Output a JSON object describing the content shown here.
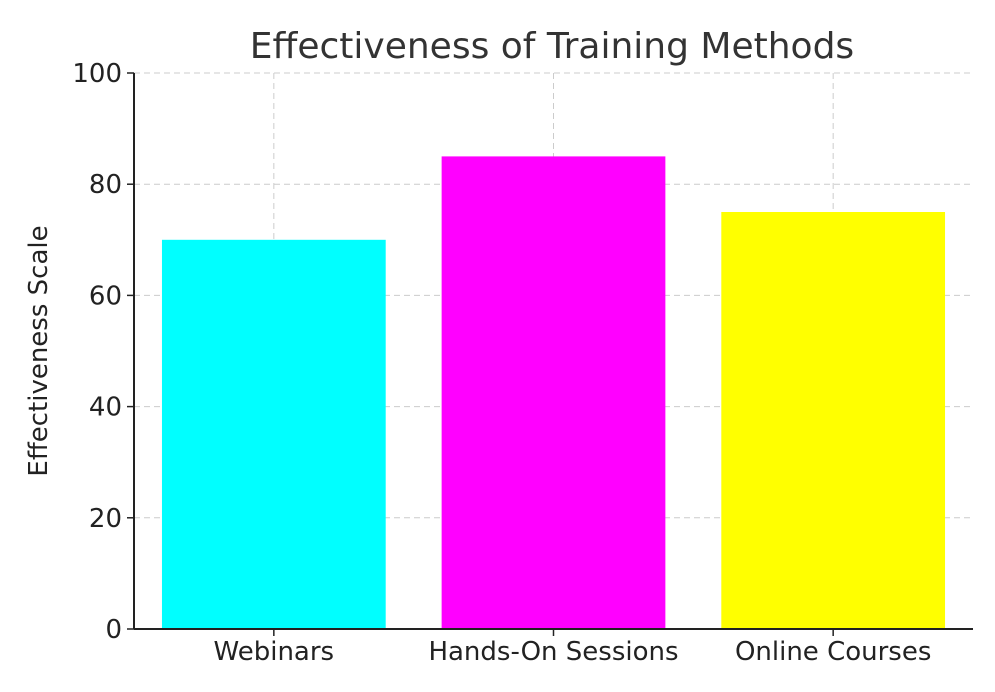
{
  "chart_data": {
    "type": "bar",
    "title": "Effectiveness of Training Methods",
    "xlabel": "",
    "ylabel": "Effectiveness Scale",
    "categories": [
      "Webinars",
      "Hands-On Sessions",
      "Online Courses"
    ],
    "values": [
      70,
      85,
      75
    ],
    "colors": [
      "#00ffff",
      "#ff00ff",
      "#ffff00"
    ],
    "ylim": [
      0,
      100
    ],
    "yticks": [
      0,
      20,
      40,
      60,
      80,
      100
    ],
    "grid": true,
    "legend": "none"
  }
}
